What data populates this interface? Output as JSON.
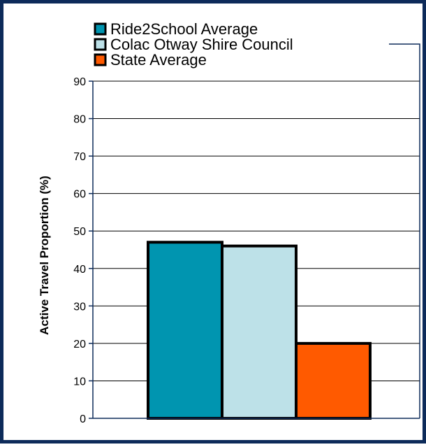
{
  "chart_data": {
    "type": "bar",
    "title": "",
    "xlabel": "",
    "ylabel": "Active Travel Proportion (%)",
    "ylim": [
      0,
      90
    ],
    "yticks": [
      0,
      10,
      20,
      30,
      40,
      50,
      60,
      70,
      80,
      90
    ],
    "grid": true,
    "legend_position": "top",
    "series": [
      {
        "name": "Ride2School Average",
        "value": 47,
        "color": "#0095b0"
      },
      {
        "name": "Colac Otway Shire Council",
        "value": 46,
        "color": "#bde1e8"
      },
      {
        "name": "State Average",
        "value": 20,
        "color": "#ff5a00"
      }
    ]
  },
  "colors": {
    "frame": "#0d2b5a",
    "axis": "#0d2b5a",
    "gridline": "#000000",
    "bar_outline": "#000000"
  }
}
